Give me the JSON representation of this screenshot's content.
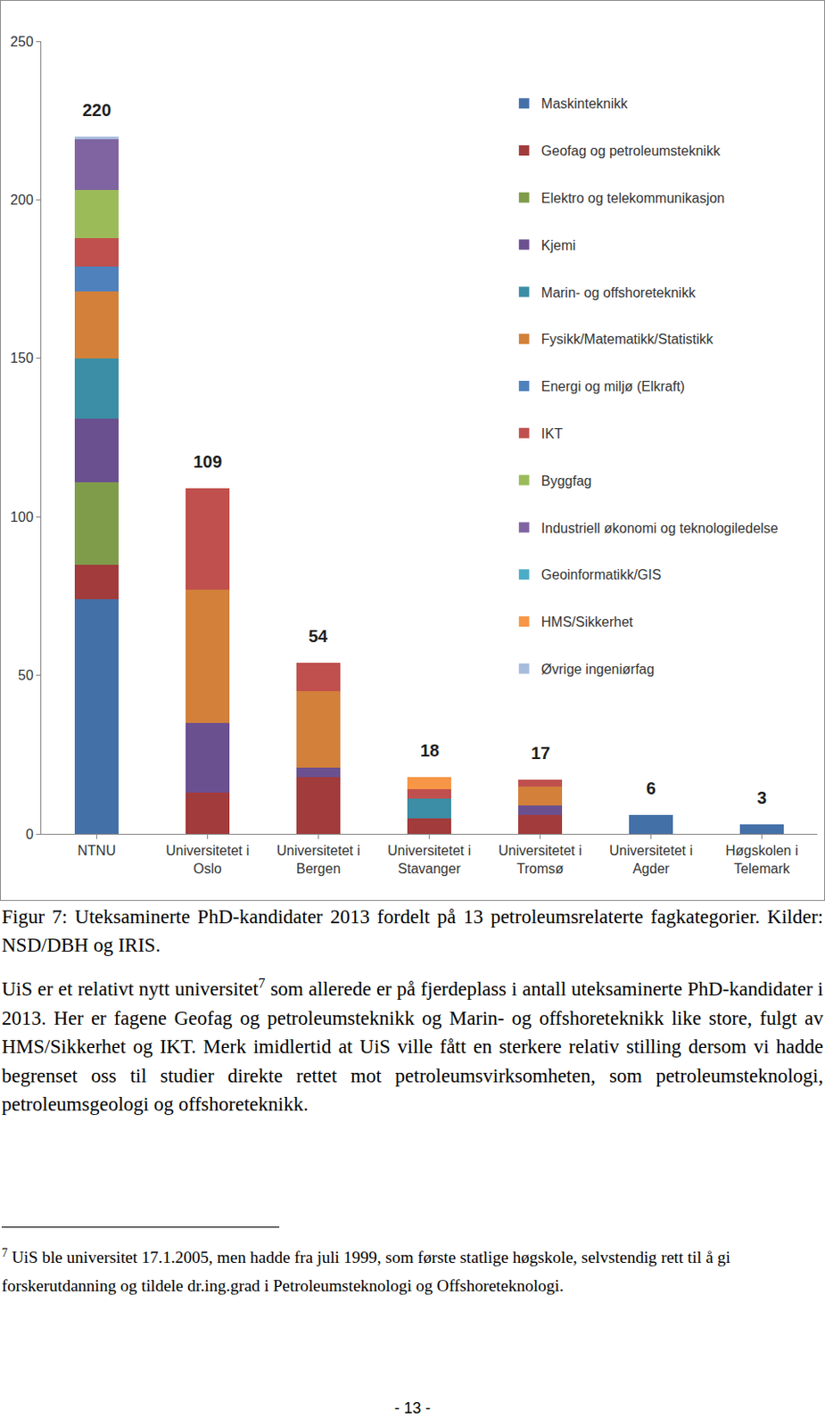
{
  "chart_data": {
    "type": "bar",
    "stacked": true,
    "categories": [
      "NTNU",
      "Universitetet i Oslo",
      "Universitetet i Bergen",
      "Universitetet i Stavanger",
      "Universitetet i Tromsø",
      "Universitetet i Agder",
      "Høgskolen i Telemark"
    ],
    "series": [
      {
        "name": "Maskinteknikk",
        "color": "#4470a8",
        "values": [
          74,
          0,
          0,
          0,
          0,
          6,
          3
        ]
      },
      {
        "name": "Geofag og petroleumsteknikk",
        "color": "#a23b3b",
        "values": [
          11,
          13,
          18,
          5,
          6,
          0,
          0
        ]
      },
      {
        "name": "Elektro og telekommunikasjon",
        "color": "#7f9c4a",
        "values": [
          26,
          0,
          0,
          0,
          0,
          0,
          0
        ]
      },
      {
        "name": "Kjemi",
        "color": "#6b5090",
        "values": [
          20,
          22,
          3,
          0,
          3,
          0,
          0
        ]
      },
      {
        "name": "Marin- og offshoreteknikk",
        "color": "#3b8ea5",
        "values": [
          19,
          0,
          0,
          6,
          0,
          0,
          0
        ]
      },
      {
        "name": "Fysikk/Matematikk/Statistikk",
        "color": "#d2803a",
        "values": [
          21,
          42,
          24,
          0,
          6,
          0,
          0
        ]
      },
      {
        "name": "Energi og miljø (Elkraft)",
        "color": "#4f81bd",
        "values": [
          8,
          0,
          0,
          0,
          0,
          0,
          0
        ]
      },
      {
        "name": "IKT",
        "color": "#c0504d",
        "values": [
          9,
          32,
          9,
          3,
          2,
          0,
          0
        ]
      },
      {
        "name": "Byggfag",
        "color": "#9bbb59",
        "values": [
          15,
          0,
          0,
          0,
          0,
          0,
          0
        ]
      },
      {
        "name": "Industriell økonomi og teknologiledelse",
        "color": "#8064a2",
        "values": [
          16,
          0,
          0,
          0,
          0,
          0,
          0
        ]
      },
      {
        "name": "Geoinformatikk/GIS",
        "color": "#4bacc6",
        "values": [
          0,
          0,
          0,
          0,
          0,
          0,
          0
        ]
      },
      {
        "name": "HMS/Sikkerhet",
        "color": "#f79646",
        "values": [
          0,
          0,
          0,
          4,
          0,
          0,
          0
        ]
      },
      {
        "name": "Øvrige ingeniørfag",
        "color": "#a8bcdc",
        "values": [
          1,
          0,
          0,
          0,
          0,
          0,
          0
        ]
      }
    ],
    "totals": [
      220,
      109,
      54,
      18,
      17,
      6,
      3
    ],
    "ylim": [
      0,
      250
    ],
    "yticks": [
      0,
      50,
      100,
      150,
      200,
      250
    ],
    "grid": false,
    "legend": "top right"
  },
  "caption": "Figur 7: Uteksaminerte PhD-kandidater 2013 fordelt på 13 petroleumsrelaterte fagkategorier. Kilder: NSD/DBH og IRIS.",
  "paragraph": {
    "text_before": "UiS er et relativt nytt universitet",
    "footnote_ref": "7",
    "text_after": " som allerede er på fjerdeplass i antall uteksaminerte PhD-kandidater i 2013. Her er fagene Geofag og petroleumsteknikk og Marin- og offshoreteknikk like store, fulgt av HMS/Sikkerhet og IKT. Merk imidlertid at UiS ville fått en sterkere relativ stilling dersom vi hadde begrenset oss til studier direkte rettet mot petroleumsvirksomheten, som petroleumsteknologi, petroleumsgeologi og offshoreteknikk."
  },
  "footnote": {
    "marker": "7",
    "text": "UiS ble universitet 17.1.2005, men hadde fra juli 1999, som første statlige høgskole, selvstendig rett til å gi forskerutdanning og tildele dr.ing.grad i Petroleumsteknologi og Offshoreteknologi."
  },
  "page_number": "- 13 -"
}
